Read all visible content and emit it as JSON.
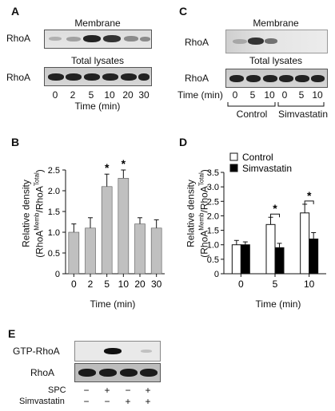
{
  "panelA": {
    "letter": "A",
    "membrane_title": "Membrane",
    "total_title": "Total lysates",
    "row_label_top": "RhoA",
    "row_label_bottom": "RhoA",
    "lanes": [
      "0",
      "2",
      "5",
      "10",
      "20",
      "30"
    ],
    "xlabel": "Time (min)"
  },
  "panelC": {
    "letter": "C",
    "membrane_title": "Membrane",
    "total_title": "Total lysates",
    "row_label_top": "RhoA",
    "row_label_bottom": "RhoA",
    "time_label": "Time (min)",
    "lanes": [
      "0",
      "5",
      "10",
      "0",
      "5",
      "10"
    ],
    "group1": "Control",
    "group2": "Simvastatin"
  },
  "panelB": {
    "letter": "B",
    "ylabel_line1": "Relative density",
    "ylabel_line2": "(RhoA",
    "ylabel_sup1": "Memb",
    "ylabel_mid": "/RhoA",
    "ylabel_sup2": "Total",
    "ylabel_end": ")",
    "xlabel": "Time (min)"
  },
  "panelD": {
    "letter": "D",
    "ylabel_line1": "Relative density",
    "ylabel_line2": "(RhoA",
    "ylabel_sup1": "Memb",
    "ylabel_mid": "/RhoA",
    "ylabel_sup2": "Total",
    "ylabel_end": ")",
    "xlabel": "Time (min)",
    "legend": [
      "Control",
      "Simvastatin"
    ]
  },
  "panelE": {
    "letter": "E",
    "row1": "GTP-RhoA",
    "row2": "RhoA",
    "spc_label": "SPC",
    "simva_label": "Simvastatin",
    "spc_signs": [
      "−",
      "+",
      "−",
      "+"
    ],
    "simva_signs": [
      "−",
      "−",
      "+",
      "+"
    ]
  },
  "chart_data": [
    {
      "type": "bar",
      "panel": "B",
      "categories": [
        "0",
        "2",
        "5",
        "10",
        "20",
        "30"
      ],
      "values": [
        1.0,
        1.1,
        2.1,
        2.3,
        1.2,
        1.1
      ],
      "errors": [
        0.2,
        0.25,
        0.3,
        0.2,
        0.15,
        0.2
      ],
      "significance": [
        "",
        "",
        "*",
        "*",
        "",
        ""
      ],
      "ylim": [
        0,
        2.5
      ],
      "yticks": [
        "0",
        "0.5",
        "1.0",
        "1.5",
        "2.0",
        "2.5"
      ],
      "bar_color": "#c0c0c0"
    },
    {
      "type": "bar",
      "panel": "D",
      "categories": [
        "0",
        "5",
        "10"
      ],
      "series": [
        {
          "name": "Control",
          "values": [
            1.0,
            1.7,
            2.1
          ],
          "errors": [
            0.15,
            0.25,
            0.3
          ],
          "color": "#ffffff"
        },
        {
          "name": "Simvastatin",
          "values": [
            1.0,
            0.9,
            1.2
          ],
          "errors": [
            0.1,
            0.15,
            0.22
          ],
          "color": "#000000"
        }
      ],
      "significance": [
        "",
        "*",
        "*"
      ],
      "ylim": [
        0,
        3.5
      ],
      "yticks": [
        "0",
        "0.5",
        "1.0",
        "1.5",
        "2.0",
        "2.5",
        "3.0",
        "3.5"
      ]
    }
  ]
}
